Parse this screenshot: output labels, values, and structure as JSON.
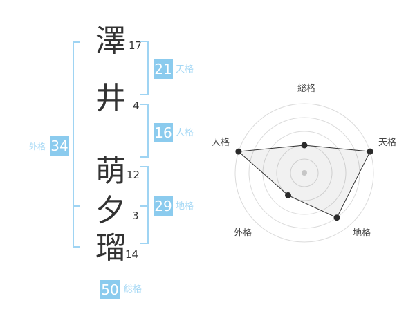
{
  "colors": {
    "accent_blue": "#8BCBEE",
    "light_blue_text": "#A5D8F5",
    "bracket_blue": "#9FD4F3",
    "dark_text": "#333333",
    "ring_gray": "#DBDBDB",
    "polygon_stroke": "#333333",
    "polygon_fill": "rgba(0,0,0,0.055)",
    "point_dark": "#2B2B2B",
    "center_dot_gray": "#C6C6C6"
  },
  "name_panel": {
    "characters": [
      {
        "char": "澤",
        "strokes": "17"
      },
      {
        "char": "井",
        "strokes": "4"
      },
      {
        "char": "萌",
        "strokes": "12"
      },
      {
        "char": "夕",
        "strokes": "3"
      },
      {
        "char": "瑠",
        "strokes": "14"
      }
    ],
    "tenkaku": {
      "value": "21",
      "label": "天格"
    },
    "jinkaku": {
      "value": "16",
      "label": "人格"
    },
    "chikaku": {
      "value": "29",
      "label": "地格"
    },
    "gaikaku": {
      "value": "34",
      "label": "外格"
    },
    "soukaku": {
      "value": "50",
      "label": "総格"
    }
  },
  "chart_data": {
    "type": "radar",
    "title": "",
    "axes": [
      "総格",
      "天格",
      "地格",
      "外格",
      "人格"
    ],
    "values": [
      2,
      5,
      4,
      2,
      5
    ],
    "max": 5,
    "rings": 5,
    "grid": "concentric-circles",
    "legend_position": "none"
  }
}
